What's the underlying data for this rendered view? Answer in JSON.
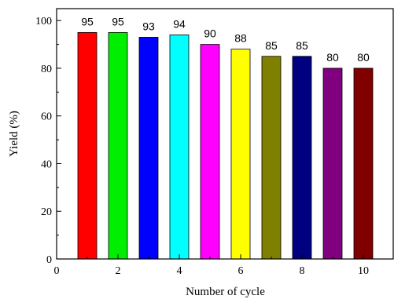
{
  "chart_data": {
    "type": "bar",
    "title": "",
    "xlabel": "Number of cycle",
    "ylabel": "Yield (%)",
    "x": [
      1,
      2,
      3,
      4,
      5,
      6,
      7,
      8,
      9,
      10
    ],
    "values": [
      95,
      95,
      93,
      94,
      90,
      88,
      85,
      85,
      80,
      80
    ],
    "data_labels": [
      "95",
      "95",
      "93",
      "94",
      "90",
      "88",
      "85",
      "85",
      "80",
      "80"
    ],
    "colors": [
      "#ff0000",
      "#00ee00",
      "#0000ff",
      "#00ffff",
      "#ff00ff",
      "#ffff00",
      "#808000",
      "#000080",
      "#800080",
      "#800000"
    ],
    "xlim": [
      0,
      11
    ],
    "ylim": [
      0,
      105
    ],
    "xticks": [
      0,
      2,
      4,
      6,
      8,
      10
    ],
    "yticks": [
      0,
      20,
      40,
      60,
      80,
      100
    ],
    "xtick_labels": [
      "0",
      "2",
      "4",
      "6",
      "8",
      "10"
    ],
    "ytick_labels": [
      "0",
      "20",
      "40",
      "60",
      "80",
      "100"
    ],
    "grid": false,
    "legend": "none"
  }
}
